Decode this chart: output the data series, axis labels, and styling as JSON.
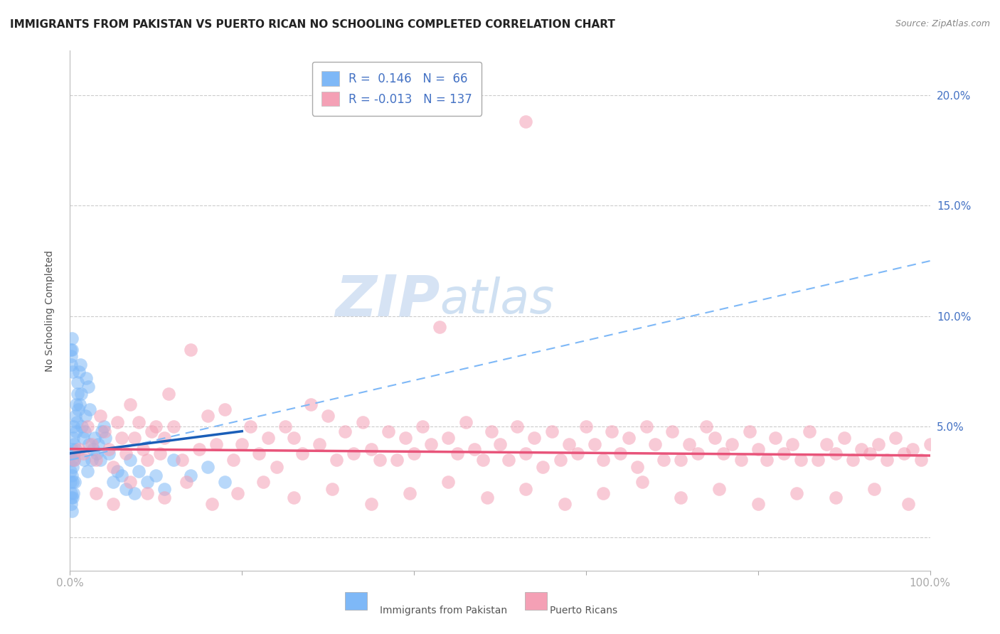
{
  "title": "IMMIGRANTS FROM PAKISTAN VS PUERTO RICAN NO SCHOOLING COMPLETED CORRELATION CHART",
  "source": "Source: ZipAtlas.com",
  "ylabel": "No Schooling Completed",
  "xlim": [
    0.0,
    100.0
  ],
  "ylim": [
    -1.5,
    22.0
  ],
  "xticks": [
    0.0,
    20.0,
    40.0,
    60.0,
    80.0,
    100.0
  ],
  "yticks": [
    0.0,
    5.0,
    10.0,
    15.0,
    20.0
  ],
  "ytick_labels": [
    "",
    "5.0%",
    "10.0%",
    "15.0%",
    "20.0%"
  ],
  "xtick_labels": [
    "0.0%",
    "",
    "",
    "",
    "",
    "100.0%"
  ],
  "series1_color": "#7eb8f7",
  "series2_color": "#f4a0b5",
  "trendline1_color": "#1a5eb8",
  "trendline2_color": "#e8547a",
  "trendline_dashed_color": "#7eb8f7",
  "watermark_zip": "ZIP",
  "watermark_atlas": "atlas",
  "background_color": "#ffffff",
  "grid_color": "#cccccc",
  "title_fontsize": 11,
  "axis_label_fontsize": 10,
  "tick_fontsize": 11,
  "pakistan_x": [
    0.05,
    0.08,
    0.1,
    0.12,
    0.15,
    0.18,
    0.2,
    0.22,
    0.25,
    0.28,
    0.3,
    0.32,
    0.35,
    0.38,
    0.4,
    0.42,
    0.45,
    0.48,
    0.5,
    0.55,
    0.6,
    0.65,
    0.7,
    0.75,
    0.8,
    0.85,
    0.9,
    0.95,
    1.0,
    1.1,
    1.2,
    1.3,
    1.4,
    1.5,
    1.6,
    1.7,
    1.8,
    1.9,
    2.0,
    2.1,
    2.2,
    2.3,
    2.5,
    2.7,
    2.9,
    3.1,
    3.3,
    3.5,
    3.7,
    3.9,
    4.1,
    4.5,
    5.0,
    5.5,
    6.0,
    6.5,
    7.0,
    7.5,
    8.0,
    9.0,
    10.0,
    11.0,
    12.0,
    14.0,
    16.0,
    18.0
  ],
  "pakistan_y": [
    3.0,
    2.5,
    1.5,
    2.0,
    1.8,
    3.5,
    2.8,
    1.2,
    4.0,
    3.2,
    2.5,
    1.8,
    4.5,
    3.8,
    5.0,
    2.0,
    3.5,
    4.2,
    3.8,
    2.5,
    5.5,
    4.0,
    4.8,
    6.0,
    5.2,
    7.0,
    6.5,
    5.8,
    7.5,
    6.0,
    7.8,
    6.5,
    5.0,
    4.5,
    3.5,
    4.8,
    5.5,
    7.2,
    3.0,
    6.8,
    4.2,
    5.8,
    3.5,
    4.0,
    4.5,
    3.8,
    4.2,
    3.5,
    4.8,
    5.0,
    4.5,
    3.8,
    2.5,
    3.0,
    2.8,
    2.2,
    3.5,
    2.0,
    3.0,
    2.5,
    2.8,
    2.2,
    3.5,
    2.8,
    3.2,
    2.5
  ],
  "pakistan_high_x": [
    0.05,
    0.1,
    0.15,
    0.2,
    0.25,
    0.3
  ],
  "pakistan_high_y": [
    8.5,
    8.2,
    7.8,
    9.0,
    8.5,
    7.5
  ],
  "pr_x": [
    0.5,
    1.0,
    1.5,
    2.0,
    2.5,
    3.0,
    3.5,
    4.0,
    4.5,
    5.0,
    5.5,
    6.0,
    6.5,
    7.0,
    7.5,
    8.0,
    8.5,
    9.0,
    9.5,
    10.0,
    10.5,
    11.0,
    11.5,
    12.0,
    13.0,
    14.0,
    15.0,
    16.0,
    17.0,
    18.0,
    19.0,
    20.0,
    21.0,
    22.0,
    23.0,
    24.0,
    25.0,
    26.0,
    27.0,
    28.0,
    29.0,
    30.0,
    31.0,
    32.0,
    33.0,
    34.0,
    35.0,
    36.0,
    37.0,
    38.0,
    39.0,
    40.0,
    41.0,
    42.0,
    43.0,
    44.0,
    45.0,
    46.0,
    47.0,
    48.0,
    49.0,
    50.0,
    51.0,
    52.0,
    53.0,
    54.0,
    55.0,
    56.0,
    57.0,
    58.0,
    59.0,
    60.0,
    61.0,
    62.0,
    63.0,
    64.0,
    65.0,
    66.0,
    67.0,
    68.0,
    69.0,
    70.0,
    71.0,
    72.0,
    73.0,
    74.0,
    75.0,
    76.0,
    77.0,
    78.0,
    79.0,
    80.0,
    81.0,
    82.0,
    83.0,
    84.0,
    85.0,
    86.0,
    87.0,
    88.0,
    89.0,
    90.0,
    91.0,
    92.0,
    93.0,
    94.0,
    95.0,
    96.0,
    97.0,
    98.0,
    99.0,
    100.0,
    3.0,
    5.0,
    7.0,
    9.0,
    11.0,
    13.5,
    16.5,
    19.5,
    22.5,
    26.0,
    30.5,
    35.0,
    39.5,
    44.0,
    48.5,
    53.0,
    57.5,
    62.0,
    66.5,
    71.0,
    75.5,
    80.0,
    84.5,
    89.0,
    93.5,
    97.5
  ],
  "pr_y": [
    3.5,
    4.0,
    3.8,
    5.0,
    4.2,
    3.5,
    5.5,
    4.8,
    4.0,
    3.2,
    5.2,
    4.5,
    3.8,
    6.0,
    4.5,
    5.2,
    4.0,
    3.5,
    4.8,
    5.0,
    3.8,
    4.5,
    6.5,
    5.0,
    3.5,
    8.5,
    4.0,
    5.5,
    4.2,
    5.8,
    3.5,
    4.2,
    5.0,
    3.8,
    4.5,
    3.2,
    5.0,
    4.5,
    3.8,
    6.0,
    4.2,
    5.5,
    3.5,
    4.8,
    3.8,
    5.2,
    4.0,
    3.5,
    4.8,
    3.5,
    4.5,
    3.8,
    5.0,
    4.2,
    9.5,
    4.5,
    3.8,
    5.2,
    4.0,
    3.5,
    4.8,
    4.2,
    3.5,
    5.0,
    3.8,
    4.5,
    3.2,
    4.8,
    3.5,
    4.2,
    3.8,
    5.0,
    4.2,
    3.5,
    4.8,
    3.8,
    4.5,
    3.2,
    5.0,
    4.2,
    3.5,
    4.8,
    3.5,
    4.2,
    3.8,
    5.0,
    4.5,
    3.8,
    4.2,
    3.5,
    4.8,
    4.0,
    3.5,
    4.5,
    3.8,
    4.2,
    3.5,
    4.8,
    3.5,
    4.2,
    3.8,
    4.5,
    3.5,
    4.0,
    3.8,
    4.2,
    3.5,
    4.5,
    3.8,
    4.0,
    3.5,
    4.2,
    2.0,
    1.5,
    2.5,
    2.0,
    1.8,
    2.5,
    1.5,
    2.0,
    2.5,
    1.8,
    2.2,
    1.5,
    2.0,
    2.5,
    1.8,
    2.2,
    1.5,
    2.0,
    2.5,
    1.8,
    2.2,
    1.5,
    2.0,
    1.8,
    2.2,
    1.5
  ],
  "pr_outlier_x": [
    53.0
  ],
  "pr_outlier_y": [
    18.8
  ],
  "pk_trend_x": [
    0.0,
    20.0
  ],
  "pk_trend_y": [
    3.8,
    4.8
  ],
  "pr_trend_x": [
    0.0,
    100.0
  ],
  "pr_trend_y": [
    4.0,
    3.7
  ],
  "dash_trend_x": [
    0.0,
    100.0
  ],
  "dash_trend_y": [
    3.5,
    12.5
  ]
}
